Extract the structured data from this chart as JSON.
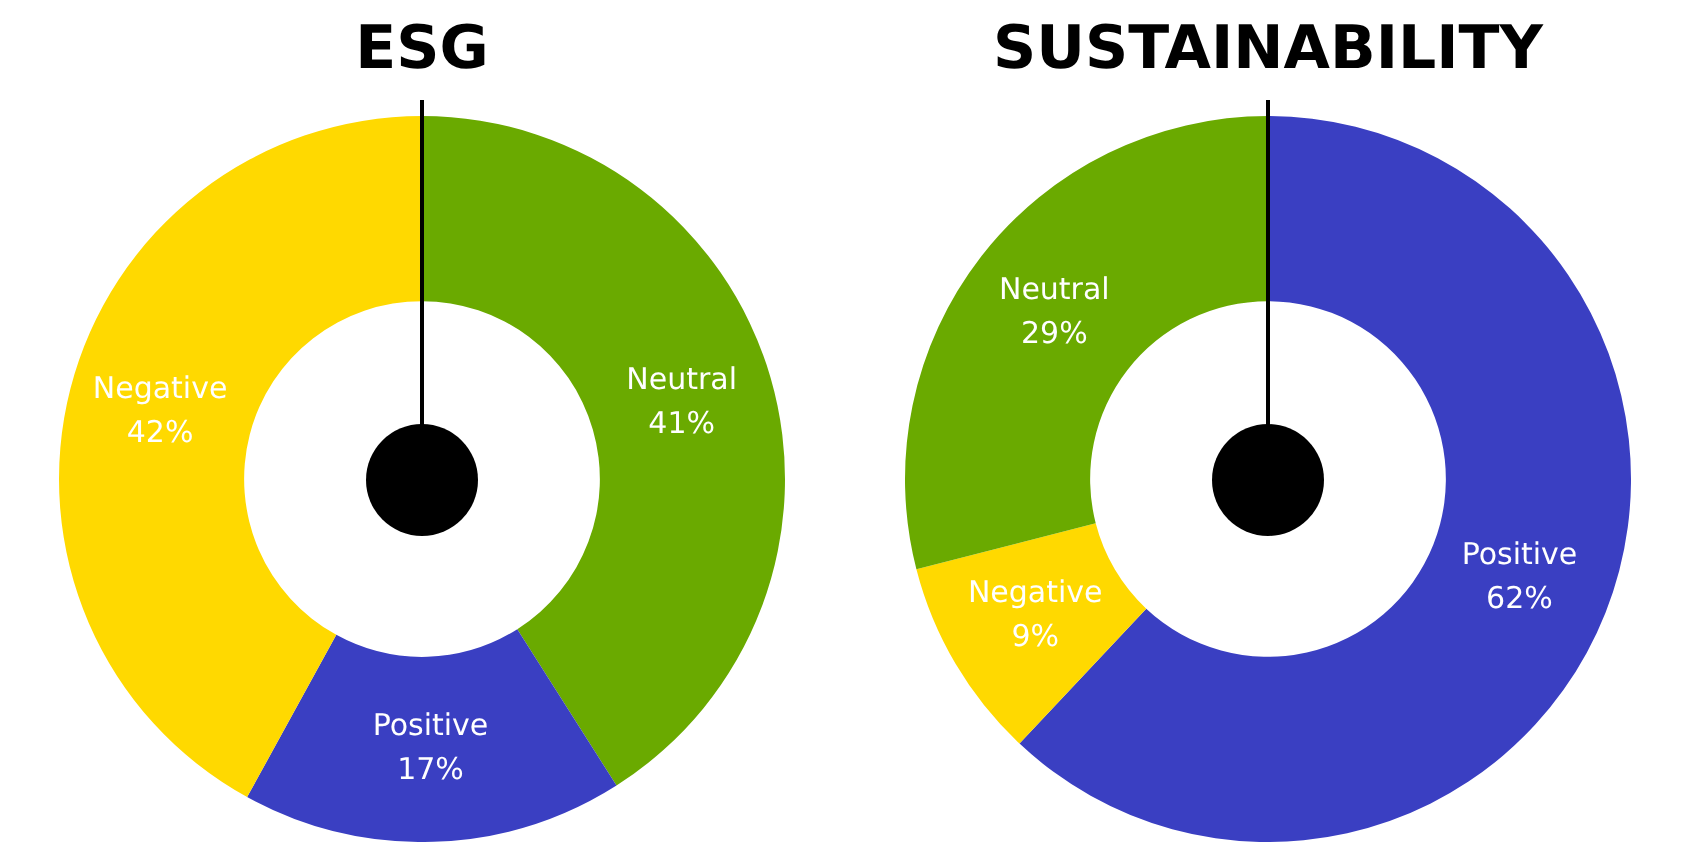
{
  "chart_data": [
    {
      "type": "donut",
      "title": "ESG",
      "categories": [
        "Neutral",
        "Positive",
        "Negative"
      ],
      "values": [
        41,
        17,
        42
      ],
      "colors": [
        "#6aaa00",
        "#3a3fc2",
        "#ffd900"
      ],
      "value_labels": [
        "41%",
        "17%",
        "42%"
      ],
      "legend": false
    },
    {
      "type": "donut",
      "title": "SUSTAINABILITY",
      "categories": [
        "Positive",
        "Negative",
        "Neutral"
      ],
      "values": [
        62,
        9,
        29
      ],
      "colors": [
        "#3a3fc2",
        "#ffd900",
        "#6aaa00"
      ],
      "value_labels": [
        "62%",
        "9%",
        "29%"
      ],
      "legend": false
    }
  ]
}
